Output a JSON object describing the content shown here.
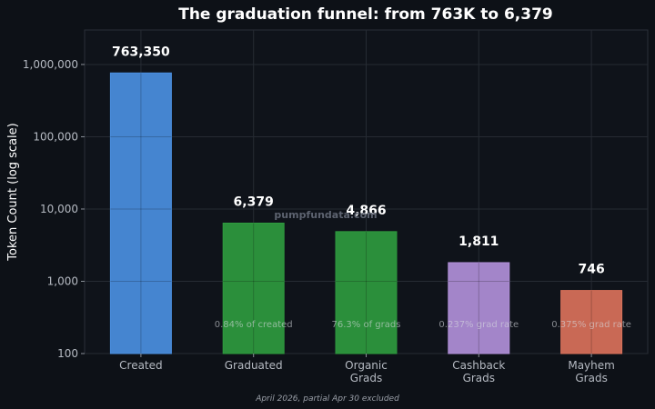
{
  "chart_data": {
    "type": "bar",
    "title": "The graduation funnel: from 763K to 6,379",
    "ylabel": "Token Count (log scale)",
    "xlabel": "",
    "yscale": "log",
    "ylim": [
      100,
      3000000
    ],
    "yticks": [
      {
        "value": 100,
        "label": "100"
      },
      {
        "value": 1000,
        "label": "1,000"
      },
      {
        "value": 10000,
        "label": "10,000"
      },
      {
        "value": 100000,
        "label": "100,000"
      },
      {
        "value": 1000000,
        "label": "1,000,000"
      }
    ],
    "grid": true,
    "categories": [
      [
        "Created"
      ],
      [
        "Graduated"
      ],
      [
        "Organic",
        "Grads"
      ],
      [
        "Cashback",
        "Grads"
      ],
      [
        "Mayhem",
        "Grads"
      ]
    ],
    "values": [
      763350,
      6379,
      4866,
      1811,
      746
    ],
    "value_labels": [
      "763,350",
      "6,379",
      "4,866",
      "1,811",
      "746"
    ],
    "inner_labels": [
      "",
      "0.84% of created",
      "76.3% of grads",
      "0.237% grad rate",
      "0.375% grad rate"
    ],
    "colors": [
      "#4a8fdf",
      "#2e9a3e",
      "#2e9a3e",
      "#b08fd8",
      "#d9715a"
    ],
    "watermark": "pumpfundata.com",
    "footnote": "April 2026, partial Apr 30 excluded"
  }
}
